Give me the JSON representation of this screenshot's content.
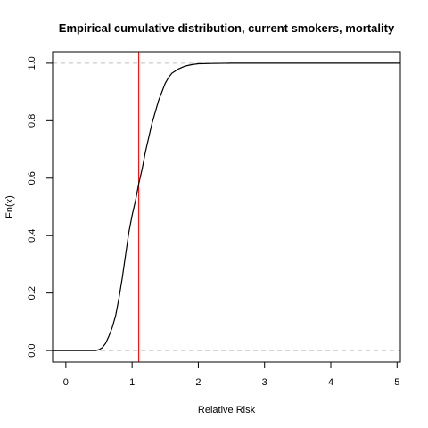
{
  "chart_data": {
    "type": "line",
    "title": "Empirical cumulative distribution, current smokers, mortality",
    "xlabel": "Relative Risk",
    "ylabel": "Fn(x)",
    "xlim": [
      -0.2,
      5.05
    ],
    "ylim": [
      -0.04,
      1.04
    ],
    "x_ticks": [
      0,
      1,
      2,
      3,
      4,
      5
    ],
    "y_ticks": [
      0.0,
      0.2,
      0.4,
      0.6,
      0.8,
      1.0
    ],
    "x_tick_labels": [
      "0",
      "1",
      "2",
      "3",
      "4",
      "5"
    ],
    "y_tick_labels": [
      "0.0",
      "0.2",
      "0.4",
      "0.6",
      "0.8",
      "1.0"
    ],
    "grid": false,
    "reference_lines": [
      {
        "orientation": "horizontal",
        "value": 0,
        "style": "dashed",
        "color": "#bebebe"
      },
      {
        "orientation": "horizontal",
        "value": 1,
        "style": "dashed",
        "color": "#bebebe"
      },
      {
        "orientation": "vertical",
        "value": 1.1,
        "style": "solid",
        "color": "#ff0000"
      }
    ],
    "series": [
      {
        "color": "#000000",
        "x": [
          -0.2,
          0.45,
          0.5,
          0.55,
          0.6,
          0.65,
          0.7,
          0.75,
          0.8,
          0.85,
          0.9,
          0.95,
          1.0,
          1.05,
          1.1,
          1.15,
          1.2,
          1.25,
          1.3,
          1.35,
          1.4,
          1.45,
          1.5,
          1.55,
          1.6,
          1.7,
          1.8,
          1.9,
          2.0,
          2.2,
          2.5,
          2.8,
          5.05
        ],
        "y": [
          0,
          0,
          0.003,
          0.01,
          0.025,
          0.05,
          0.08,
          0.12,
          0.18,
          0.25,
          0.33,
          0.41,
          0.47,
          0.52,
          0.58,
          0.63,
          0.69,
          0.74,
          0.79,
          0.83,
          0.87,
          0.9,
          0.93,
          0.95,
          0.965,
          0.98,
          0.99,
          0.995,
          0.998,
          0.999,
          1.0,
          1.0,
          1.0
        ]
      }
    ]
  }
}
